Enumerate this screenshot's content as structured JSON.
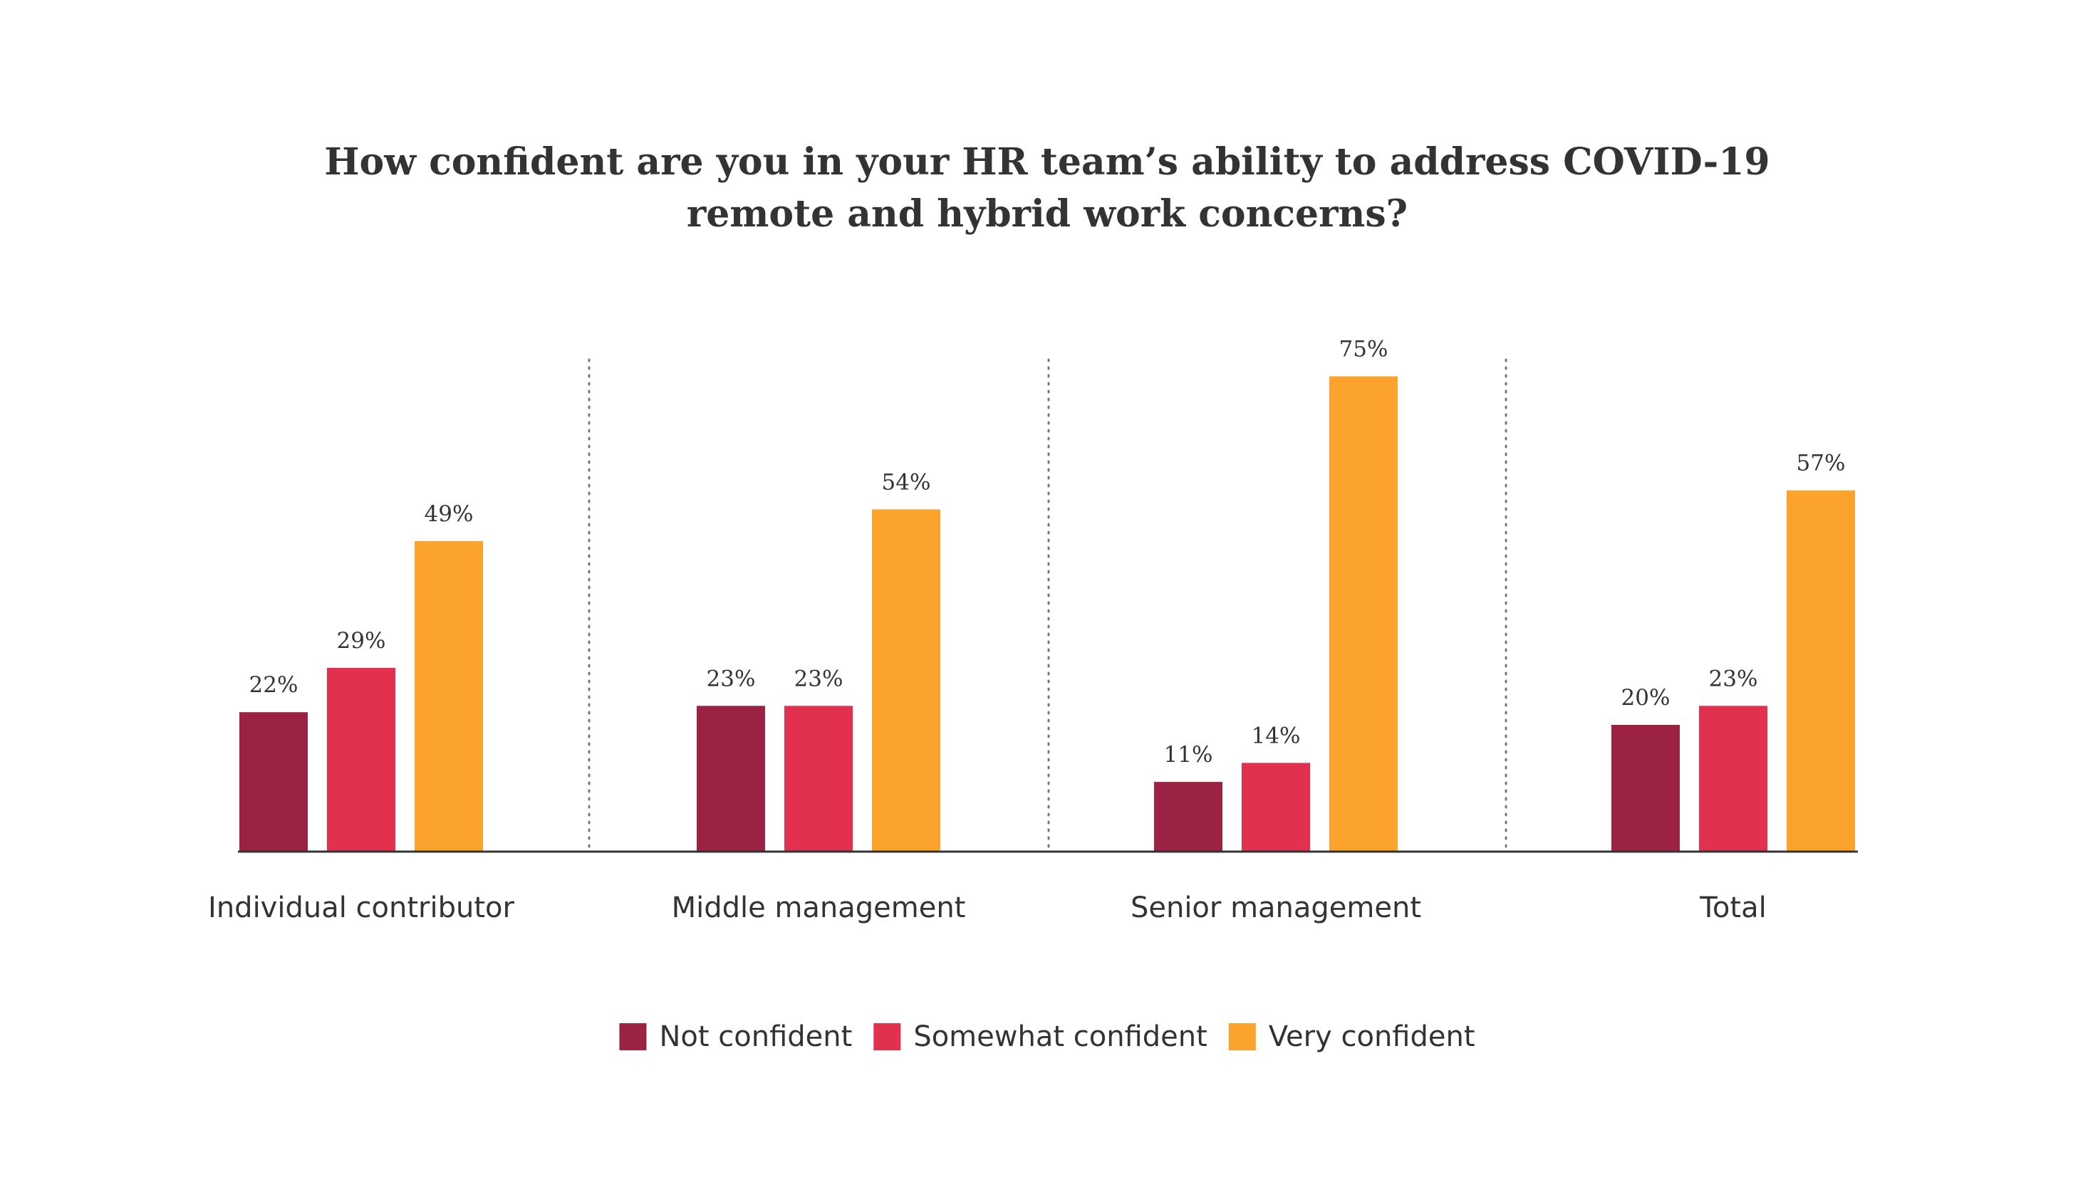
{
  "chart_data": {
    "type": "bar",
    "title": "How confident are you in your HR team’s ability to address COVID-19 remote and hybrid work concerns?",
    "title_lines": [
      "How confident are you in your HR team’s ability to address COVID-19",
      "remote and hybrid work concerns?"
    ],
    "categories": [
      "Individual contributor",
      "Middle management",
      "Senior management",
      "Total"
    ],
    "series": [
      {
        "name": "Not confident",
        "color": "#9b2242",
        "values": [
          22,
          23,
          11,
          20
        ],
        "labels": [
          "22%",
          "23%",
          "11%",
          "20%"
        ]
      },
      {
        "name": "Somewhat confident",
        "color": "#e2304f",
        "values": [
          29,
          23,
          14,
          23
        ],
        "labels": [
          "29%",
          "23%",
          "14%",
          "23%"
        ]
      },
      {
        "name": "Very confident",
        "color": "#fba32c",
        "values": [
          49,
          54,
          75,
          57
        ],
        "labels": [
          "49%",
          "54%",
          "75%",
          "57%"
        ]
      }
    ],
    "unit": "%",
    "ylim": [
      0,
      80
    ],
    "xlabel": "",
    "ylabel": "",
    "grid": false,
    "group_separators": "dotted",
    "legend_position": "bottom-center",
    "axis_color": "#333333",
    "text_color": "#333333"
  }
}
